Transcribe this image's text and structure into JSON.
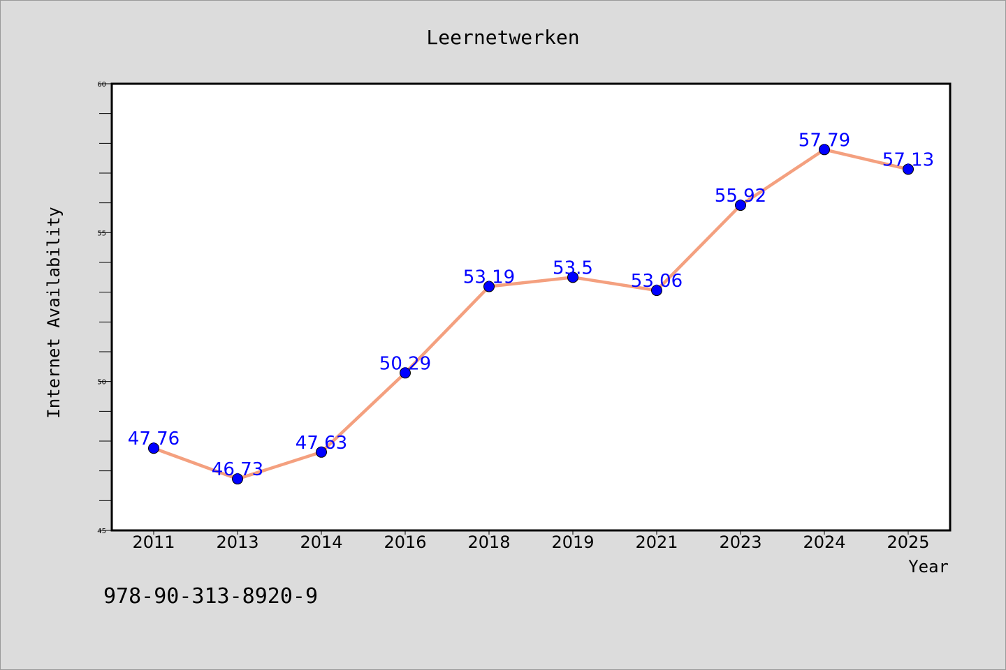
{
  "chart_data": {
    "type": "line",
    "title": "Leernetwerken",
    "xlabel": "Year",
    "ylabel": "Internet Availability",
    "categories": [
      "2011",
      "2013",
      "2014",
      "2016",
      "2018",
      "2019",
      "2021",
      "2023",
      "2024",
      "2025"
    ],
    "series": [
      {
        "values": [
          47.76,
          46.73,
          47.63,
          50.29,
          53.19,
          53.5,
          53.06,
          55.92,
          57.79,
          57.13
        ],
        "labels": [
          "47.76",
          "46.73",
          "47.63",
          "50.29",
          "53.19",
          "53.5",
          "53.06",
          "55.92",
          "57.79",
          "57.13"
        ]
      }
    ],
    "ylim": [
      45,
      60
    ],
    "yticks": [
      45,
      50,
      55,
      60
    ],
    "grid": false,
    "colors": {
      "background": "#dcdcdc",
      "plot_background": "#ffffff",
      "line": "#f4a07f",
      "marker": "#0000ff",
      "data_label": "#0000ff"
    }
  },
  "footer": {
    "isbn": "978-90-313-8920-9"
  }
}
